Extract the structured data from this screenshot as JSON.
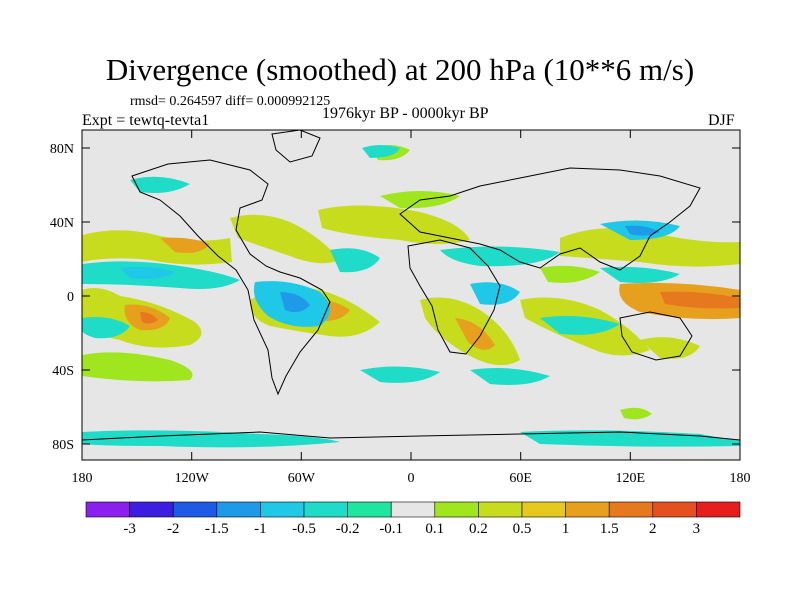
{
  "title": "Divergence (smoothed) at 200 hPa (10**6 m/s)",
  "stats_line": "rmsd= 0.264597 diff= 0.000992125",
  "experiment": "Expt = tewtq-tevta1",
  "period": "1976kyr BP - 0000kyr BP",
  "season": "DJF",
  "lat_ticks": [
    "80N",
    "40N",
    "0",
    "40S",
    "80S"
  ],
  "lon_ticks": [
    "180",
    "120W",
    "60W",
    "0",
    "60E",
    "120E",
    "180"
  ],
  "colorbar": {
    "colors": [
      "#8a1ff0",
      "#3c1ee0",
      "#1e5ae6",
      "#1e9ae8",
      "#1ec8e6",
      "#1edcc8",
      "#1ee6a0",
      "#e6e6e6",
      "#a0e61e",
      "#c8dc1e",
      "#e6c81e",
      "#e6a01e",
      "#e6781e",
      "#e6501e",
      "#e61e1e"
    ],
    "labels": [
      "-3",
      "-2",
      "-1.5",
      "-1",
      "-0.5",
      "-0.2",
      "-0.1",
      "0.1",
      "0.2",
      "0.5",
      "1",
      "1.5",
      "2",
      "3"
    ]
  },
  "colors": {
    "ocean_background": "#e6e6e6",
    "coastline": "#000000"
  }
}
